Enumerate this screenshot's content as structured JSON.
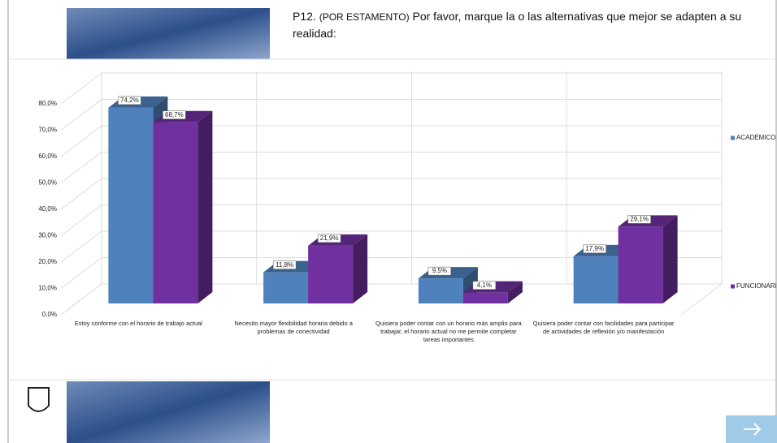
{
  "header": {
    "prefix": "P12.",
    "tag": "(POR ESTAMENTO)",
    "text": "Por favor, marque la o las alternativas que mejor se adapten a su realidad:"
  },
  "chart_data": {
    "type": "bar3d",
    "categories": [
      "Estoy conforme con el horario de trabajo actual",
      "Necesito mayor flexibilidad horaria debido a problemas de conectividad",
      "Quisiera poder contar con un horario más amplio para trabajar, el horario actual no me permite completar tareas importantes",
      "Quisiera poder contar con facilidades para participar de actividades de reflexión y/o manifestación"
    ],
    "series": [
      {
        "name": "ACADÉMICO",
        "color": "#4f81bd",
        "values": [
          74.2,
          11.8,
          9.5,
          17.9
        ],
        "value_labels": [
          "74,2%",
          "11,8%",
          "9,5%",
          "17,9%"
        ]
      },
      {
        "name": "FUNCIONARIO",
        "color": "#7030a0",
        "values": [
          68.7,
          21.9,
          4.1,
          29.1
        ],
        "value_labels": [
          "68,7%",
          "21,9%",
          "4,1%",
          "29,1%"
        ]
      }
    ],
    "ylim": [
      0,
      80
    ],
    "yticks": [
      {
        "value": 0,
        "label": "0,0%"
      },
      {
        "value": 10,
        "label": "10,0%"
      },
      {
        "value": 20,
        "label": "20,0%"
      },
      {
        "value": 30,
        "label": "30,0%"
      },
      {
        "value": 40,
        "label": "40,0%"
      },
      {
        "value": 50,
        "label": "50,0%"
      },
      {
        "value": 60,
        "label": "60,0%"
      },
      {
        "value": 70,
        "label": "70,0%"
      },
      {
        "value": 80,
        "label": "80,0%"
      }
    ],
    "grid": true,
    "legend_position": "right"
  }
}
